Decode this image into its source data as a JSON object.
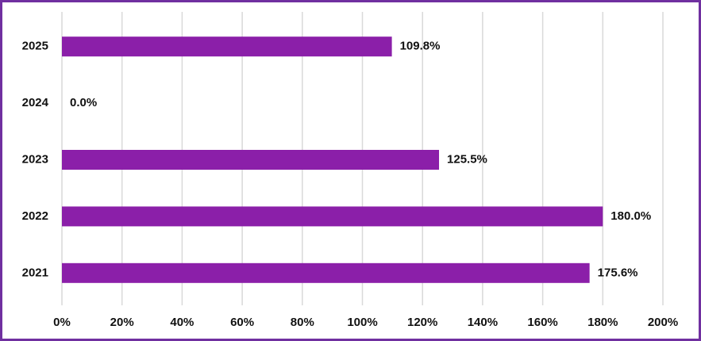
{
  "chart_data": {
    "type": "bar",
    "orientation": "horizontal",
    "categories": [
      "2025",
      "2024",
      "2023",
      "2022",
      "2021"
    ],
    "values": [
      109.8,
      0.0,
      125.5,
      180.0,
      175.6
    ],
    "value_labels": [
      "109.8%",
      "0.0%",
      "125.5%",
      "180.0%",
      "175.6%"
    ],
    "color": "#8b1fa9",
    "xlim": [
      0,
      200
    ],
    "xticks": [
      {
        "value": 0,
        "label": "0%"
      },
      {
        "value": 20,
        "label": "20%"
      },
      {
        "value": 40,
        "label": "40%"
      },
      {
        "value": 60,
        "label": "60%"
      },
      {
        "value": 80,
        "label": "80%"
      },
      {
        "value": 100,
        "label": "100%"
      },
      {
        "value": 120,
        "label": "120%"
      },
      {
        "value": 140,
        "label": "140%"
      },
      {
        "value": 160,
        "label": "160%"
      },
      {
        "value": 180,
        "label": "180%"
      },
      {
        "value": 200,
        "label": "200%"
      }
    ],
    "grid": true
  }
}
